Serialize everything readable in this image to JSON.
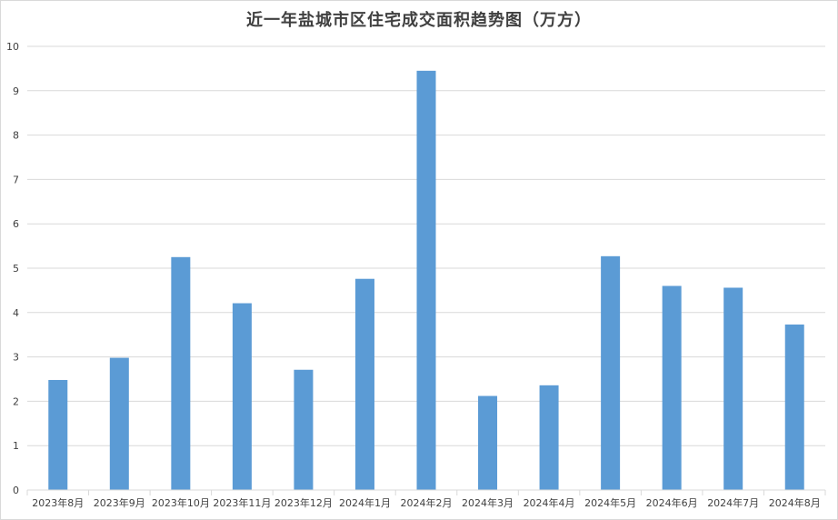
{
  "chart_data": {
    "type": "bar",
    "title": "近一年盐城市区住宅成交面积趋势图（万方）",
    "categories": [
      "2023年8月",
      "2023年9月",
      "2023年10月",
      "2023年11月",
      "2023年12月",
      "2024年1月",
      "2024年2月",
      "2024年3月",
      "2024年4月",
      "2024年5月",
      "2024年6月",
      "2024年7月",
      "2024年8月"
    ],
    "values": [
      2.48,
      2.98,
      5.25,
      4.21,
      2.71,
      4.76,
      9.45,
      2.12,
      2.36,
      5.27,
      4.6,
      4.56,
      3.73
    ],
    "ylim": [
      0,
      10
    ],
    "yticks": [
      "0",
      "1",
      "2",
      "3",
      "4",
      "5",
      "6",
      "7",
      "8",
      "9",
      "10"
    ],
    "xlabel": "",
    "ylabel": "",
    "grid": true,
    "bar_color": "#5b9bd5",
    "grid_color": "#d9d9d9"
  }
}
